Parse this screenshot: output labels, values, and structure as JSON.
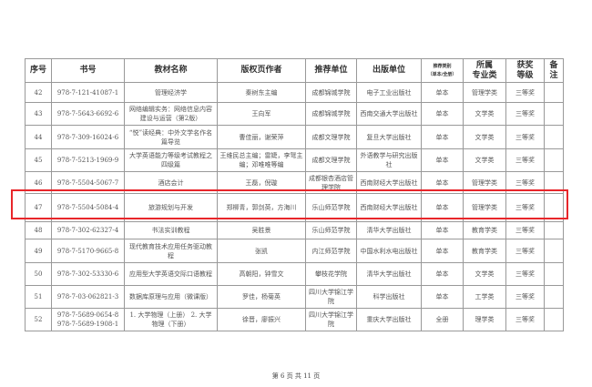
{
  "headers": [
    "序号",
    "书号",
    "教材名称",
    "版权页作者",
    "推荐单位",
    "出版单位",
    "推荐类别",
    "（单本/全册）",
    "所属",
    "专业类",
    "获奖",
    "等级",
    "备",
    "注"
  ],
  "rows": [
    [
      "42",
      "978-7-121-41087-1",
      "管理经济学",
      "秦树东主编",
      "成都锦城学院",
      "电子工业出版社",
      "单本",
      "管理学类",
      "三等奖",
      ""
    ],
    [
      "43",
      "978-7-5643-6692-6",
      "网络编辑实务：网络信息内容建设与运营（第2版）",
      "王向军",
      "成都锦城学院",
      "西南交通大学出版社",
      "单本",
      "文学类",
      "三等奖",
      ""
    ],
    [
      "44",
      "978-7-309-16024-6",
      "“悦”读经典：中外文学名作名篇导览",
      "曹佳丽，谢荣萍",
      "成都文理学院",
      "复旦大学出版社",
      "单本",
      "文学类",
      "三等奖",
      ""
    ],
    [
      "45",
      "978-7-5213-1969-9",
      "大学英语能力等级考试教程之四级篇",
      "王维民总主编；雷婕，李弩主编；邓唯唯等编",
      "成都文理学院",
      "外语教学与研究出版社",
      "单本",
      "文学类",
      "三等奖",
      ""
    ],
    [
      "46",
      "978-7-5504-5067-7",
      "酒店会计",
      "王磊，倪璇",
      "成都银杏酒店管理学院",
      "西南财经大学出版社",
      "单本",
      "管理学类",
      "三等奖",
      ""
    ],
    [
      "47",
      "978-7-5504-5084-4",
      "旅游规划与开发",
      "郑柳青，郭剑英，方海川",
      "乐山师范学院",
      "西南财经大学出版社",
      "单本",
      "管理学类",
      "三等奖",
      ""
    ],
    [
      "48",
      "978-7-302-62327-4",
      "书法实训教程",
      "吴胜景",
      "乐山师范学院",
      "清华大学出版社",
      "单本",
      "教育学类",
      "三等奖",
      ""
    ],
    [
      "49",
      "978-7-5170-9665-8",
      "现代教育技术应用任务驱动教程",
      "张凯",
      "内江师范学院",
      "中国水利水电出版社",
      "单本",
      "教育学类",
      "三等奖",
      ""
    ],
    [
      "50",
      "978-7-302-53330-6",
      "应用型大学英语交际口语教程",
      "高朝阳，钟雪文",
      "攀枝花学院",
      "清华大学出版社",
      "单本",
      "文学类",
      "三等奖",
      ""
    ],
    [
      "51",
      "978-7-03-062821-3",
      "数据库原理与应用（微课版）",
      "罗佳，杨菊英",
      "四川大学锦江学院",
      "科学出版社",
      "单本",
      "工学类",
      "三等奖",
      ""
    ],
    [
      "52",
      "978-7-5689-0654-8 978-7-5689-1908-1",
      "1. 大学物理（上册） 2. 大学物理（下册）",
      "徐晋，廖振兴",
      "四川大学锦江学院",
      "重庆大学出版社",
      "全册",
      "理学类",
      "三等奖",
      ""
    ]
  ],
  "highlight_color": "#e8262a",
  "footer": "第 6 页 共 11 页"
}
